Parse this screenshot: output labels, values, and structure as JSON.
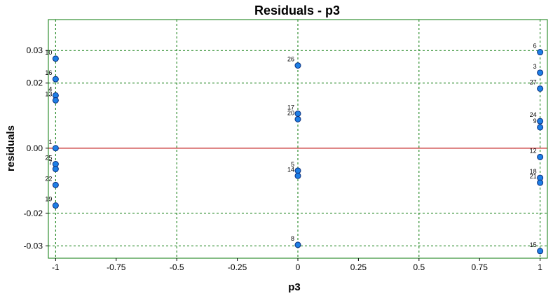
{
  "chart_data": {
    "type": "scatter",
    "title": "Residuals - p3",
    "xlabel": "p3",
    "ylabel": "residuals",
    "xlim": [
      -1.03,
      1.03
    ],
    "ylim": [
      -0.0338,
      0.0395
    ],
    "xticks": [
      -1,
      -0.75,
      -0.5,
      -0.25,
      0,
      0.25,
      0.5,
      0.75,
      1
    ],
    "xtick_labels": [
      "-1",
      "-0.75",
      "-0.5",
      "-0.25",
      "0",
      "0.25",
      "0.5",
      "0.75",
      "1"
    ],
    "yticks": [
      0.03,
      0.02,
      0.0,
      -0.02,
      -0.03
    ],
    "ytick_labels": [
      "0.03",
      "0.02",
      "0.00",
      "-0.02",
      "-0.03"
    ],
    "grid_x": [
      -1,
      -0.5,
      0,
      0.5,
      1
    ],
    "grid_y": [
      0.03,
      0.02,
      -0.02,
      -0.03
    ],
    "zero_line": 0.0,
    "grid": true,
    "colors": {
      "point_fill": "#1e7fe6",
      "point_stroke": "#0a2d7a",
      "grid": "#0a7a0a",
      "frame": "#0a7a0a",
      "zero_line": "#c01818"
    },
    "points": [
      {
        "label": "10",
        "x": -1,
        "y": 0.0275
      },
      {
        "label": "16",
        "x": -1,
        "y": 0.0212
      },
      {
        "label": "4",
        "x": -1,
        "y": 0.0162
      },
      {
        "label": "13",
        "x": -1,
        "y": 0.0147
      },
      {
        "label": "1",
        "x": -1,
        "y": 0.0
      },
      {
        "label": "25",
        "x": -1,
        "y": -0.0049
      },
      {
        "label": "7",
        "x": -1,
        "y": -0.0064
      },
      {
        "label": "22",
        "x": -1,
        "y": -0.0113
      },
      {
        "label": "19",
        "x": -1,
        "y": -0.0176
      },
      {
        "label": "26",
        "x": 0,
        "y": 0.0254
      },
      {
        "label": "17",
        "x": 0,
        "y": 0.0106
      },
      {
        "label": "20",
        "x": 0,
        "y": 0.0089
      },
      {
        "label": "5",
        "x": 0,
        "y": -0.0069
      },
      {
        "label": "14",
        "x": 0,
        "y": -0.0085
      },
      {
        "label": "8",
        "x": 0,
        "y": -0.0297
      },
      {
        "label": "6",
        "x": 1,
        "y": 0.0295
      },
      {
        "label": "3",
        "x": 1,
        "y": 0.0232
      },
      {
        "label": "27",
        "x": 1,
        "y": 0.0183
      },
      {
        "label": "24",
        "x": 1,
        "y": 0.0083
      },
      {
        "label": "9",
        "x": 1,
        "y": 0.0064
      },
      {
        "label": "12",
        "x": 1,
        "y": -0.0027
      },
      {
        "label": "18",
        "x": 1,
        "y": -0.0091
      },
      {
        "label": "21",
        "x": 1,
        "y": -0.0106
      },
      {
        "label": "15",
        "x": 1,
        "y": -0.0316
      }
    ]
  }
}
